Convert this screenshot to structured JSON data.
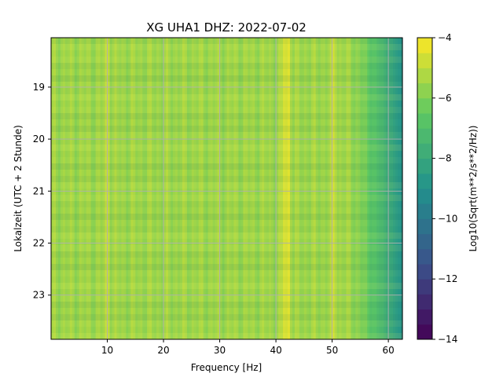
{
  "chart_data": {
    "type": "heatmap",
    "title": "XG UHA1  DHZ: 2022-07-02",
    "xlabel": "Frequency [Hz]",
    "ylabel": "Lokalzeit (UTC + 2 Stunde)",
    "xlim": [
      0,
      62.5
    ],
    "ylim": [
      23.85,
      18.05
    ],
    "x_ticks": [
      10,
      20,
      30,
      40,
      50,
      60
    ],
    "y_ticks": [
      19,
      20,
      21,
      22,
      23
    ],
    "x_tick_labels": [
      "10",
      "20",
      "30",
      "40",
      "50",
      "60"
    ],
    "y_tick_labels": [
      "19",
      "20",
      "21",
      "22",
      "23"
    ],
    "grid": true,
    "colormap": "viridis",
    "colorbar": {
      "label": "Log10(Sqrt(m**2/s**2/Hz))",
      "range": [
        -14,
        -4
      ],
      "ticks": [
        -4,
        -6,
        -8,
        -10,
        -12,
        -14
      ],
      "tick_labels": [
        "−4",
        "−6",
        "−8",
        "−10",
        "−12",
        "−14"
      ]
    },
    "spectral_features": [
      {
        "frequency_hz": 10,
        "level": -4.8
      },
      {
        "frequency_hz": 41.5,
        "level": -4.6
      },
      {
        "frequency_hz": 42.2,
        "level": -4.4
      },
      {
        "frequency_hz": 50.3,
        "level": -4.7
      }
    ],
    "background_level": -5.5,
    "high_frequency_rolloff": {
      "start_hz": 53,
      "end_hz": 62.5,
      "end_level": -9.0
    }
  }
}
